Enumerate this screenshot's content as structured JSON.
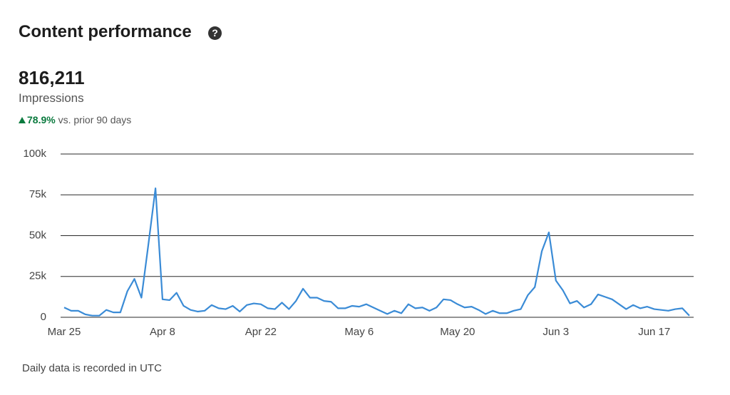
{
  "header": {
    "title": "Content performance",
    "help_icon": "?",
    "total": "816,211",
    "metric": "Impressions",
    "change": "78.9%",
    "comparison": "vs. prior 90 days"
  },
  "chart_data": {
    "type": "line",
    "categories": [
      "Mar 25",
      null,
      null,
      null,
      null,
      null,
      null,
      null,
      null,
      null,
      null,
      null,
      null,
      null,
      "Apr 8",
      null,
      null,
      null,
      null,
      null,
      null,
      null,
      null,
      null,
      null,
      null,
      null,
      null,
      "Apr 22",
      null,
      null,
      null,
      null,
      null,
      null,
      null,
      null,
      null,
      null,
      null,
      null,
      null,
      "May 6",
      null,
      null,
      null,
      null,
      null,
      null,
      null,
      null,
      null,
      null,
      null,
      null,
      null,
      "May 20",
      null,
      null,
      null,
      null,
      null,
      null,
      null,
      null,
      null,
      null,
      null,
      null,
      null,
      "Jun 3",
      null,
      null,
      null,
      null,
      null,
      null,
      null,
      null,
      null,
      null,
      null,
      null,
      null,
      "Jun 17",
      null,
      null,
      null,
      null,
      null
    ],
    "series": [
      {
        "name": "Impressions",
        "color": "#3a8bd6",
        "values": [
          6000,
          4000,
          4000,
          1800,
          1000,
          1000,
          4500,
          3000,
          3000,
          16000,
          23500,
          12000,
          45000,
          79000,
          11000,
          10500,
          15000,
          7000,
          4500,
          3500,
          4000,
          7500,
          5500,
          5000,
          7000,
          3500,
          7500,
          8500,
          8000,
          5500,
          5000,
          9000,
          5000,
          10000,
          17500,
          12000,
          12000,
          10000,
          9500,
          5500,
          5500,
          7000,
          6500,
          8000,
          6000,
          4000,
          2000,
          4000,
          2500,
          8000,
          5500,
          6000,
          4000,
          6000,
          11000,
          10500,
          8000,
          6000,
          6500,
          4500,
          2000,
          4000,
          2500,
          2500,
          4000,
          5000,
          13500,
          18500,
          40500,
          52000,
          22500,
          16500,
          8500,
          10000,
          6000,
          8000,
          14000,
          12500,
          11000,
          8000,
          5000,
          7500,
          5500,
          6500,
          5000,
          4500,
          4000,
          5000,
          5500,
          1000
        ]
      }
    ],
    "ylim": [
      0,
      100000
    ],
    "yticks": [
      0,
      {
        "value": 25000,
        "label": "25k"
      },
      {
        "value": 50000,
        "label": "50k"
      },
      {
        "value": 75000,
        "label": "75k"
      },
      {
        "value": 100000,
        "label": "100k"
      }
    ],
    "grid": true
  },
  "footer": {
    "note": "Daily data is recorded in UTC"
  }
}
